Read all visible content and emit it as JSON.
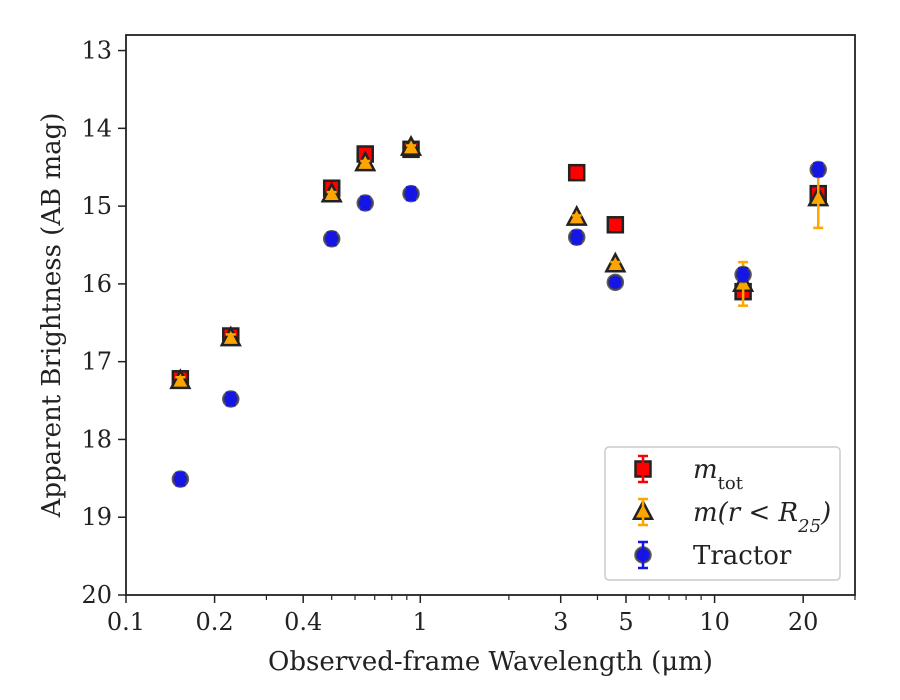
{
  "chart_data": {
    "type": "scatter",
    "xlabel": "Observed-frame Wavelength (μm)",
    "ylabel": "Apparent Brightness (AB mag)",
    "x_scale": "log",
    "xlim": [
      0.1,
      30
    ],
    "ylim": [
      20,
      12.8
    ],
    "y_inverted": true,
    "x_ticks": [
      {
        "value": 0.1,
        "label": "0.1"
      },
      {
        "value": 0.2,
        "label": "0.2"
      },
      {
        "value": 0.4,
        "label": "0.4"
      },
      {
        "value": 1,
        "label": "1"
      },
      {
        "value": 3,
        "label": "3"
      },
      {
        "value": 5,
        "label": "5"
      },
      {
        "value": 10,
        "label": "10"
      },
      {
        "value": 20,
        "label": "20"
      }
    ],
    "y_ticks": [
      {
        "value": 13,
        "label": "13"
      },
      {
        "value": 14,
        "label": "14"
      },
      {
        "value": 15,
        "label": "15"
      },
      {
        "value": 16,
        "label": "16"
      },
      {
        "value": 17,
        "label": "17"
      },
      {
        "value": 18,
        "label": "18"
      },
      {
        "value": 19,
        "label": "19"
      },
      {
        "value": 20,
        "label": "20"
      }
    ],
    "grid": false,
    "legend_position": "lower-right",
    "series": [
      {
        "name": "m_tot",
        "legend_main": "m",
        "legend_sub": "tot",
        "marker": "square",
        "color": "#ff0000",
        "errorbar_color": "#ff0000",
        "points": [
          {
            "x": 0.153,
            "y": 17.22,
            "err": 0.05
          },
          {
            "x": 0.227,
            "y": 16.67,
            "err": 0.05
          },
          {
            "x": 0.5,
            "y": 14.77,
            "err": 0.03
          },
          {
            "x": 0.65,
            "y": 14.33,
            "err": 0.03
          },
          {
            "x": 0.93,
            "y": 14.27,
            "err": 0.03
          },
          {
            "x": 3.4,
            "y": 14.57,
            "err": 0.03
          },
          {
            "x": 4.6,
            "y": 15.24,
            "err": 0.03
          },
          {
            "x": 12.5,
            "y": 16.1,
            "err": 0.05
          },
          {
            "x": 22.5,
            "y": 14.84,
            "err": 0.05
          }
        ]
      },
      {
        "name": "m(r < R_25)",
        "legend_main": "m(r < R",
        "legend_sub": "25",
        "legend_tail": ")",
        "marker": "triangle",
        "color": "#ffa500",
        "errorbar_color": "#ffa500",
        "points": [
          {
            "x": 0.153,
            "y": 17.25,
            "err": 0.05
          },
          {
            "x": 0.227,
            "y": 16.7,
            "err": 0.05
          },
          {
            "x": 0.5,
            "y": 14.85,
            "err": 0.03
          },
          {
            "x": 0.65,
            "y": 14.45,
            "err": 0.03
          },
          {
            "x": 0.93,
            "y": 14.25,
            "err": 0.03
          },
          {
            "x": 3.4,
            "y": 15.15,
            "err": 0.03
          },
          {
            "x": 4.6,
            "y": 15.75,
            "err": 0.03
          },
          {
            "x": 12.5,
            "y": 16.0,
            "err": 0.28
          },
          {
            "x": 22.5,
            "y": 14.9,
            "err": 0.38
          }
        ]
      },
      {
        "name": "Tractor",
        "legend_main": "Tractor",
        "marker": "circle",
        "color": "#1515e6",
        "errorbar_color": "#1515e6",
        "points": [
          {
            "x": 0.153,
            "y": 18.51,
            "err": 0.08
          },
          {
            "x": 0.227,
            "y": 17.48,
            "err": 0.08
          },
          {
            "x": 0.5,
            "y": 15.42,
            "err": 0.08
          },
          {
            "x": 0.65,
            "y": 14.96,
            "err": 0.08
          },
          {
            "x": 0.93,
            "y": 14.84,
            "err": 0.08
          },
          {
            "x": 3.4,
            "y": 15.4,
            "err": 0.08
          },
          {
            "x": 4.6,
            "y": 15.98,
            "err": 0.05
          },
          {
            "x": 12.5,
            "y": 15.88,
            "err": 0.08
          },
          {
            "x": 22.5,
            "y": 14.53,
            "err": 0.08
          }
        ]
      }
    ]
  }
}
